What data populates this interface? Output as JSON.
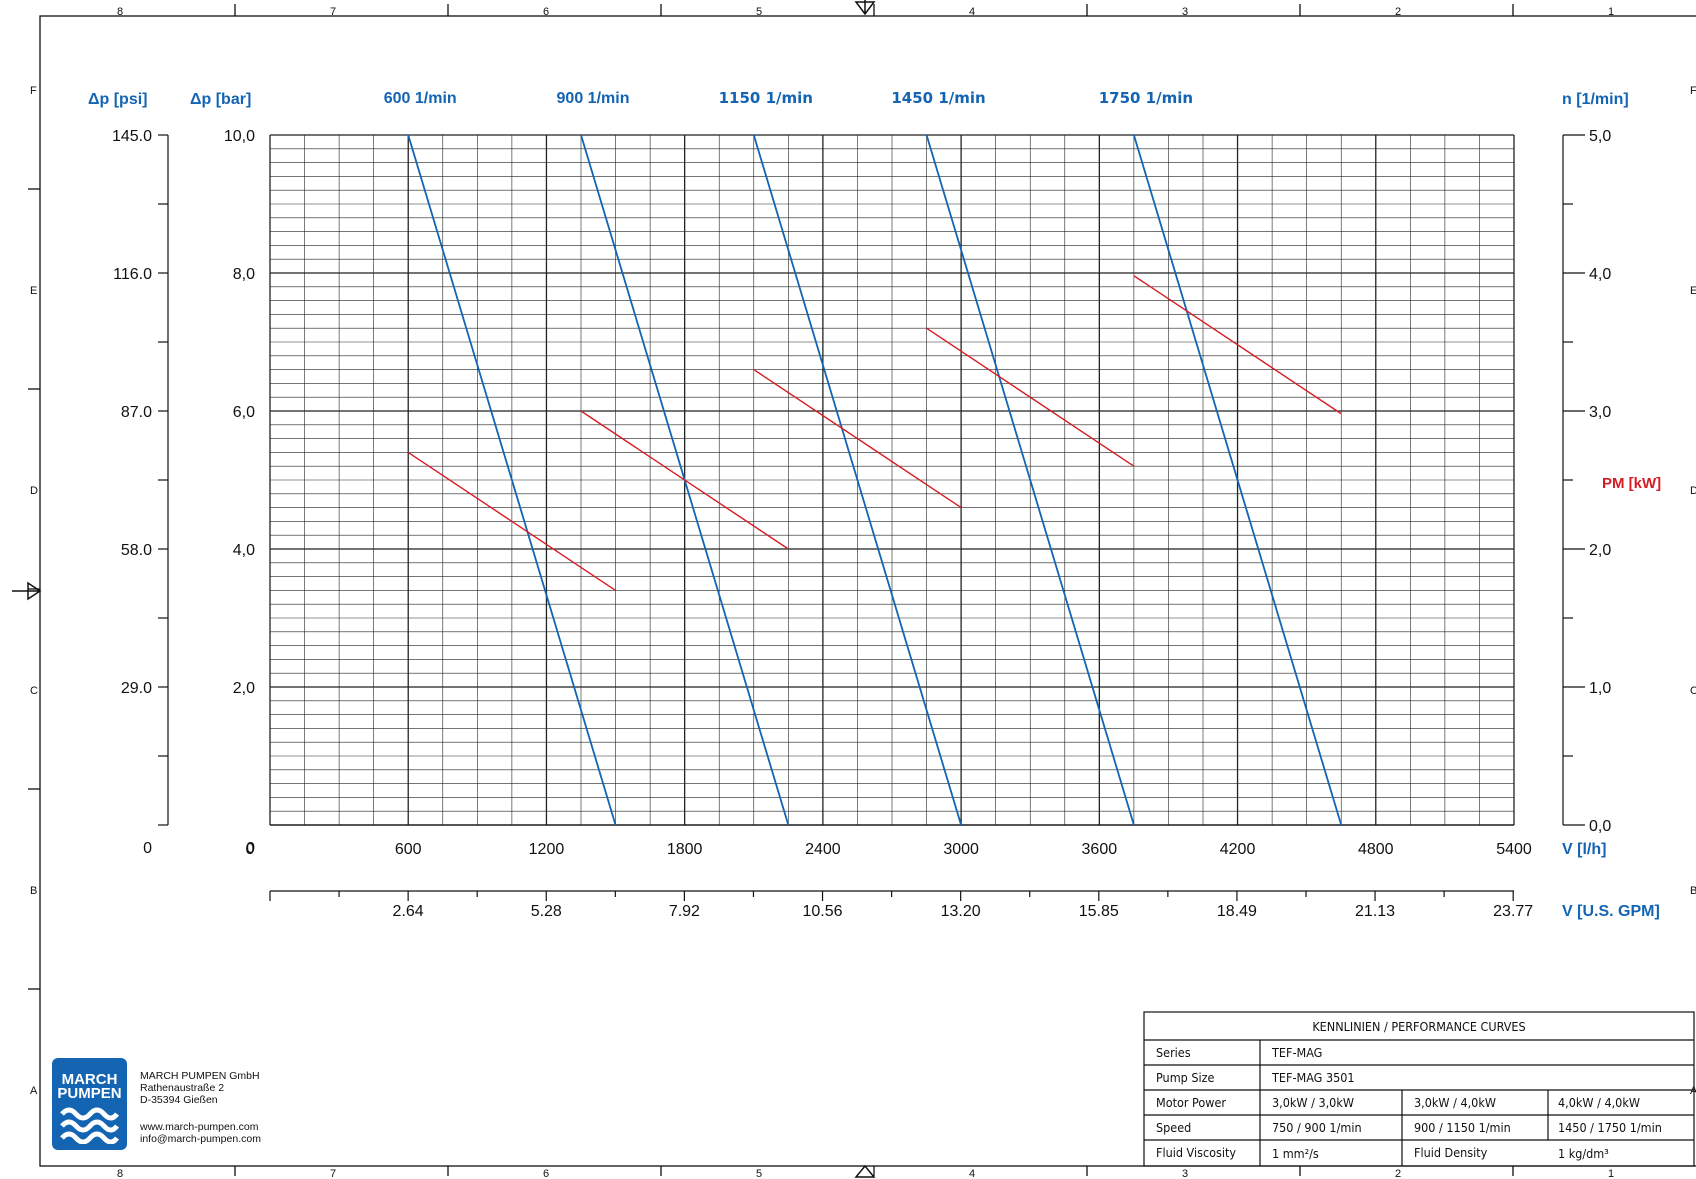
{
  "frame": {
    "columns": [
      "8",
      "7",
      "6",
      "5",
      "4",
      "3",
      "2",
      "1"
    ],
    "rows": [
      "F",
      "E",
      "D",
      "C",
      "B",
      "A"
    ]
  },
  "colors": {
    "flow": "#1464b4",
    "power": "#d61c24",
    "grid": "#222222"
  },
  "chart_data": {
    "type": "line",
    "axes": {
      "x_primary": {
        "label": "V [l/h]",
        "ticks": [
          "0",
          "600",
          "1200",
          "1800",
          "2400",
          "3000",
          "3600",
          "4200",
          "4800",
          "5400"
        ],
        "range": [
          0,
          5400
        ]
      },
      "x_secondary": {
        "label": "V [U.S. GPM]",
        "ticks": [
          "2.64",
          "5.28",
          "7.92",
          "10.56",
          "13.20",
          "15.85",
          "18.49",
          "21.13",
          "23.77"
        ]
      },
      "y_bar": {
        "label": "Δp [bar]",
        "ticks": [
          "0",
          "2,0",
          "4,0",
          "6,0",
          "8,0",
          "10,0"
        ],
        "range": [
          0,
          10
        ]
      },
      "y_psi": {
        "label": "Δp [psi]",
        "ticks": [
          "0",
          "29.0",
          "58.0",
          "87.0",
          "116.0",
          "145.0"
        ]
      },
      "y_power": {
        "label": "n [1/min]",
        "ticks": [
          "0,0",
          "1,0",
          "2,0",
          "3,0",
          "4,0",
          "5,0"
        ],
        "range": [
          0,
          5
        ]
      },
      "power_label": "PM [kW]"
    },
    "series": [
      {
        "name": "600 1/min",
        "flow": [
          [
            600,
            10.0
          ],
          [
            1500,
            0.0
          ]
        ],
        "power": [
          [
            600,
            2.7
          ],
          [
            1500,
            1.7
          ]
        ]
      },
      {
        "name": "900 1/min",
        "flow": [
          [
            1350,
            10.0
          ],
          [
            2250,
            0.0
          ]
        ],
        "power": [
          [
            1350,
            3.0
          ],
          [
            2250,
            2.0
          ]
        ]
      },
      {
        "name": "1150 1/min",
        "flow": [
          [
            2100,
            10.0
          ],
          [
            3000,
            0.0
          ]
        ],
        "power": [
          [
            2100,
            3.3
          ],
          [
            3000,
            2.3
          ]
        ]
      },
      {
        "name": "1450 1/min",
        "flow": [
          [
            2850,
            10.0
          ],
          [
            3750,
            0.0
          ]
        ],
        "power": [
          [
            2850,
            3.6
          ],
          [
            3750,
            2.6
          ]
        ]
      },
      {
        "name": "1750 1/min",
        "flow": [
          [
            3750,
            10.0
          ],
          [
            4650,
            0.0
          ]
        ],
        "power": [
          [
            3750,
            3.98
          ],
          [
            4650,
            2.98
          ]
        ]
      }
    ]
  },
  "company": {
    "logo_line1": "MARCH",
    "logo_line2": "PUMPEN",
    "name": "MARCH PUMPEN GmbH",
    "street": "Rathenaustraße 2",
    "city": "D-35394 Gießen",
    "web": "www.march-pumpen.com",
    "email": "info@march-pumpen.com"
  },
  "title_block": {
    "heading": "KENNLINIEN / PERFORMANCE CURVES",
    "series_label": "Series",
    "series_value": "TEF-MAG",
    "size_label": "Pump Size",
    "size_value": "TEF-MAG 3501",
    "power_label": "Motor Power",
    "power_1": "3,0kW / 3,0kW",
    "power_2": "3,0kW / 4,0kW",
    "power_3": "4,0kW / 4,0kW",
    "speed_label": "Speed",
    "speed_1": "750 / 900 1/min",
    "speed_2": "900 / 1150 1/min",
    "speed_3": "1450 / 1750 1/min",
    "visc_label": "Fluid Viscosity",
    "visc_value": "1 mm²/s",
    "density_label": "Fluid Density",
    "density_value": "1 kg/dm³"
  }
}
